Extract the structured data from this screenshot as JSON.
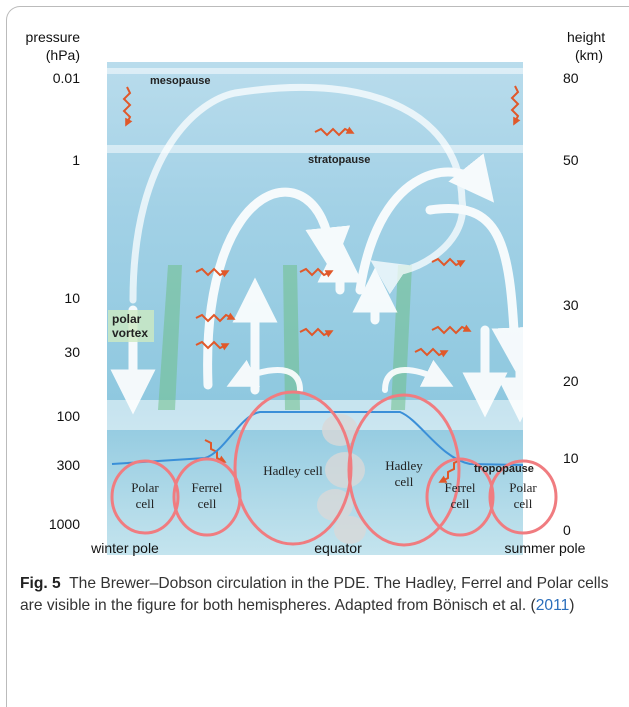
{
  "figure": {
    "left_title": [
      "pressure",
      "(hPa)"
    ],
    "right_title": [
      "height",
      "(km)"
    ],
    "pressure_ticks": [
      "0.01",
      "1",
      "10",
      "30",
      "100",
      "300",
      "1000"
    ],
    "height_ticks": [
      "80",
      "50",
      "30",
      "20",
      "10",
      "0"
    ],
    "labels": {
      "mesopause": "mesopause",
      "stratopause": "stratopause",
      "polar_vortex": [
        "polar",
        "vortex"
      ],
      "tropopause": "tropopause"
    },
    "cells": [
      [
        "Polar",
        "cell"
      ],
      [
        "Ferrel",
        "cell"
      ],
      [
        "Hadley cell"
      ],
      [
        "Hadley",
        "cell"
      ],
      [
        "Ferrel",
        "cell"
      ],
      [
        "Polar",
        "cell"
      ]
    ],
    "bottom": [
      "winter pole",
      "equator",
      "summer pole"
    ]
  },
  "caption": {
    "label": "Fig. 5",
    "text": "The Brewer–Dobson circulation in the PDE. The Hadley, Ferrel and Polar cells are visible in the figure for both hemispheres. Adapted from Bönisch et al. (",
    "link": "2011",
    "end": ")"
  }
}
